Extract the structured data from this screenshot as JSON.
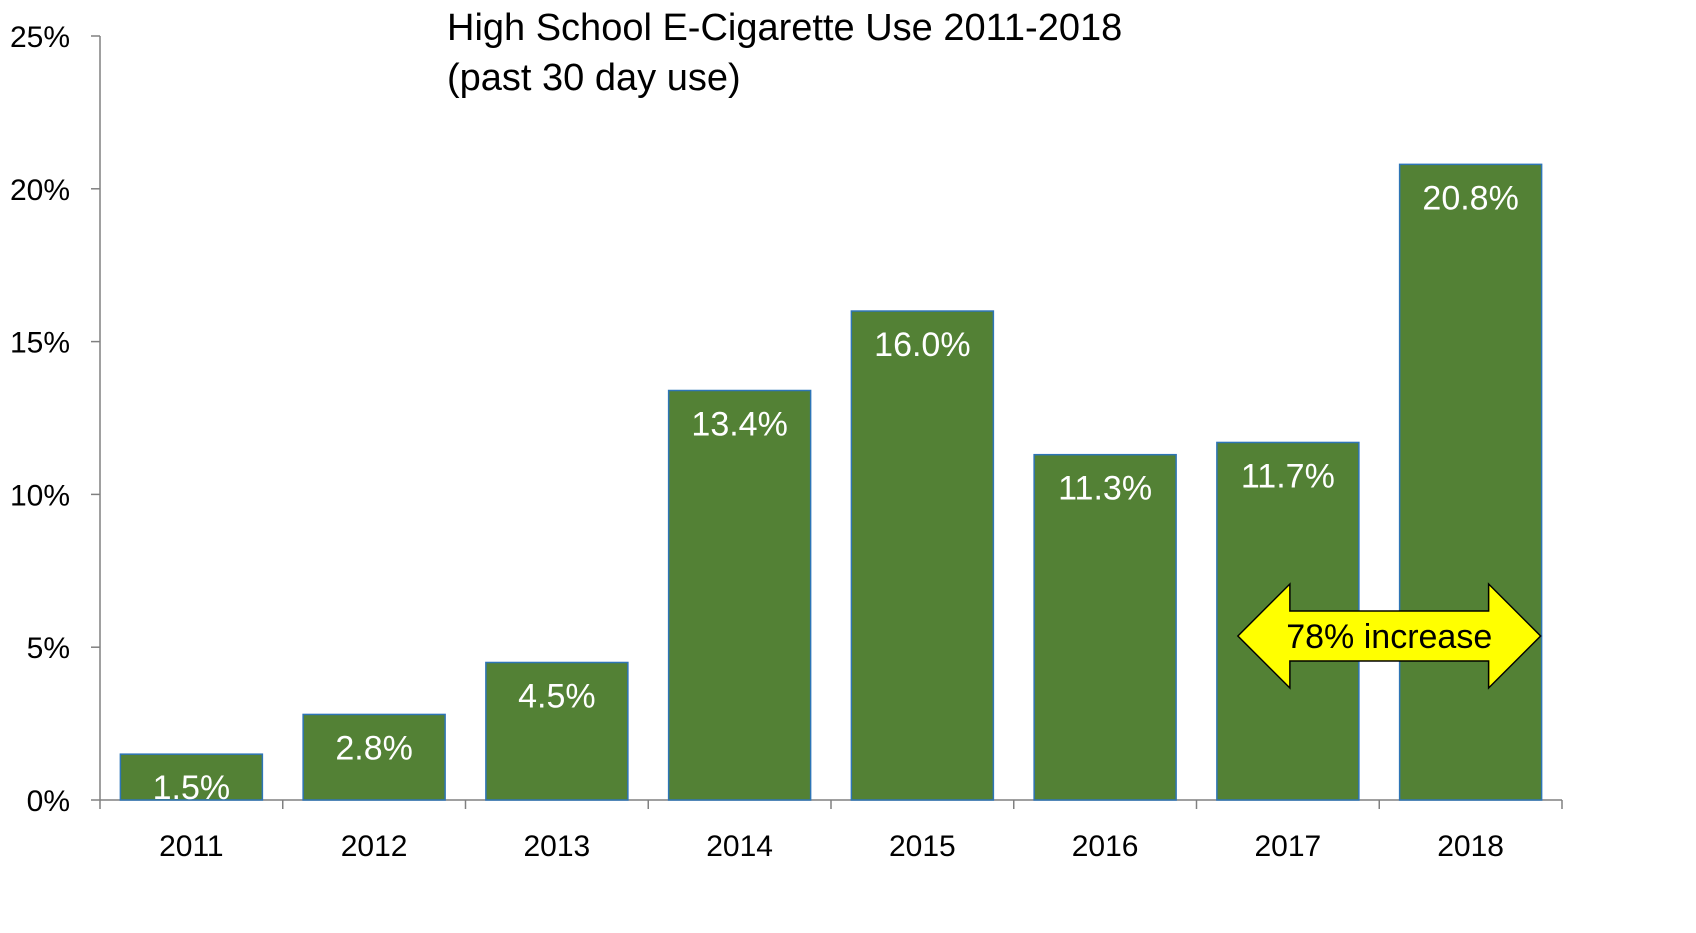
{
  "chart_data": {
    "type": "bar",
    "title": "High School E-Cigarette Use 2011-2018",
    "subtitle": "(past 30 day use)",
    "categories": [
      "2011",
      "2012",
      "2013",
      "2014",
      "2015",
      "2016",
      "2017",
      "2018"
    ],
    "values": [
      1.5,
      2.8,
      4.5,
      13.4,
      16.0,
      11.3,
      11.7,
      20.8
    ],
    "data_labels": [
      "1.5%",
      "2.8%",
      "4.5%",
      "13.4%",
      "16.0%",
      "11.3%",
      "11.7%",
      "20.8%"
    ],
    "xlabel": "",
    "ylabel": "",
    "ylim": [
      0,
      25
    ],
    "yticks": [
      0,
      5,
      10,
      15,
      20,
      25
    ],
    "ytick_labels": [
      "0%",
      "5%",
      "10%",
      "15%",
      "20%",
      "25%"
    ],
    "grid": false,
    "legend": "none",
    "colors": {
      "bar_fill": "#538135",
      "bar_stroke": "#2e75b6",
      "data_label": "#ffffff",
      "axis": "#808080",
      "callout_fill": "#ffff00",
      "callout_stroke": "#000000"
    },
    "annotations": [
      {
        "text": "78% increase",
        "shape": "double-arrow",
        "from_category": "2017",
        "to_category": "2018"
      }
    ]
  }
}
